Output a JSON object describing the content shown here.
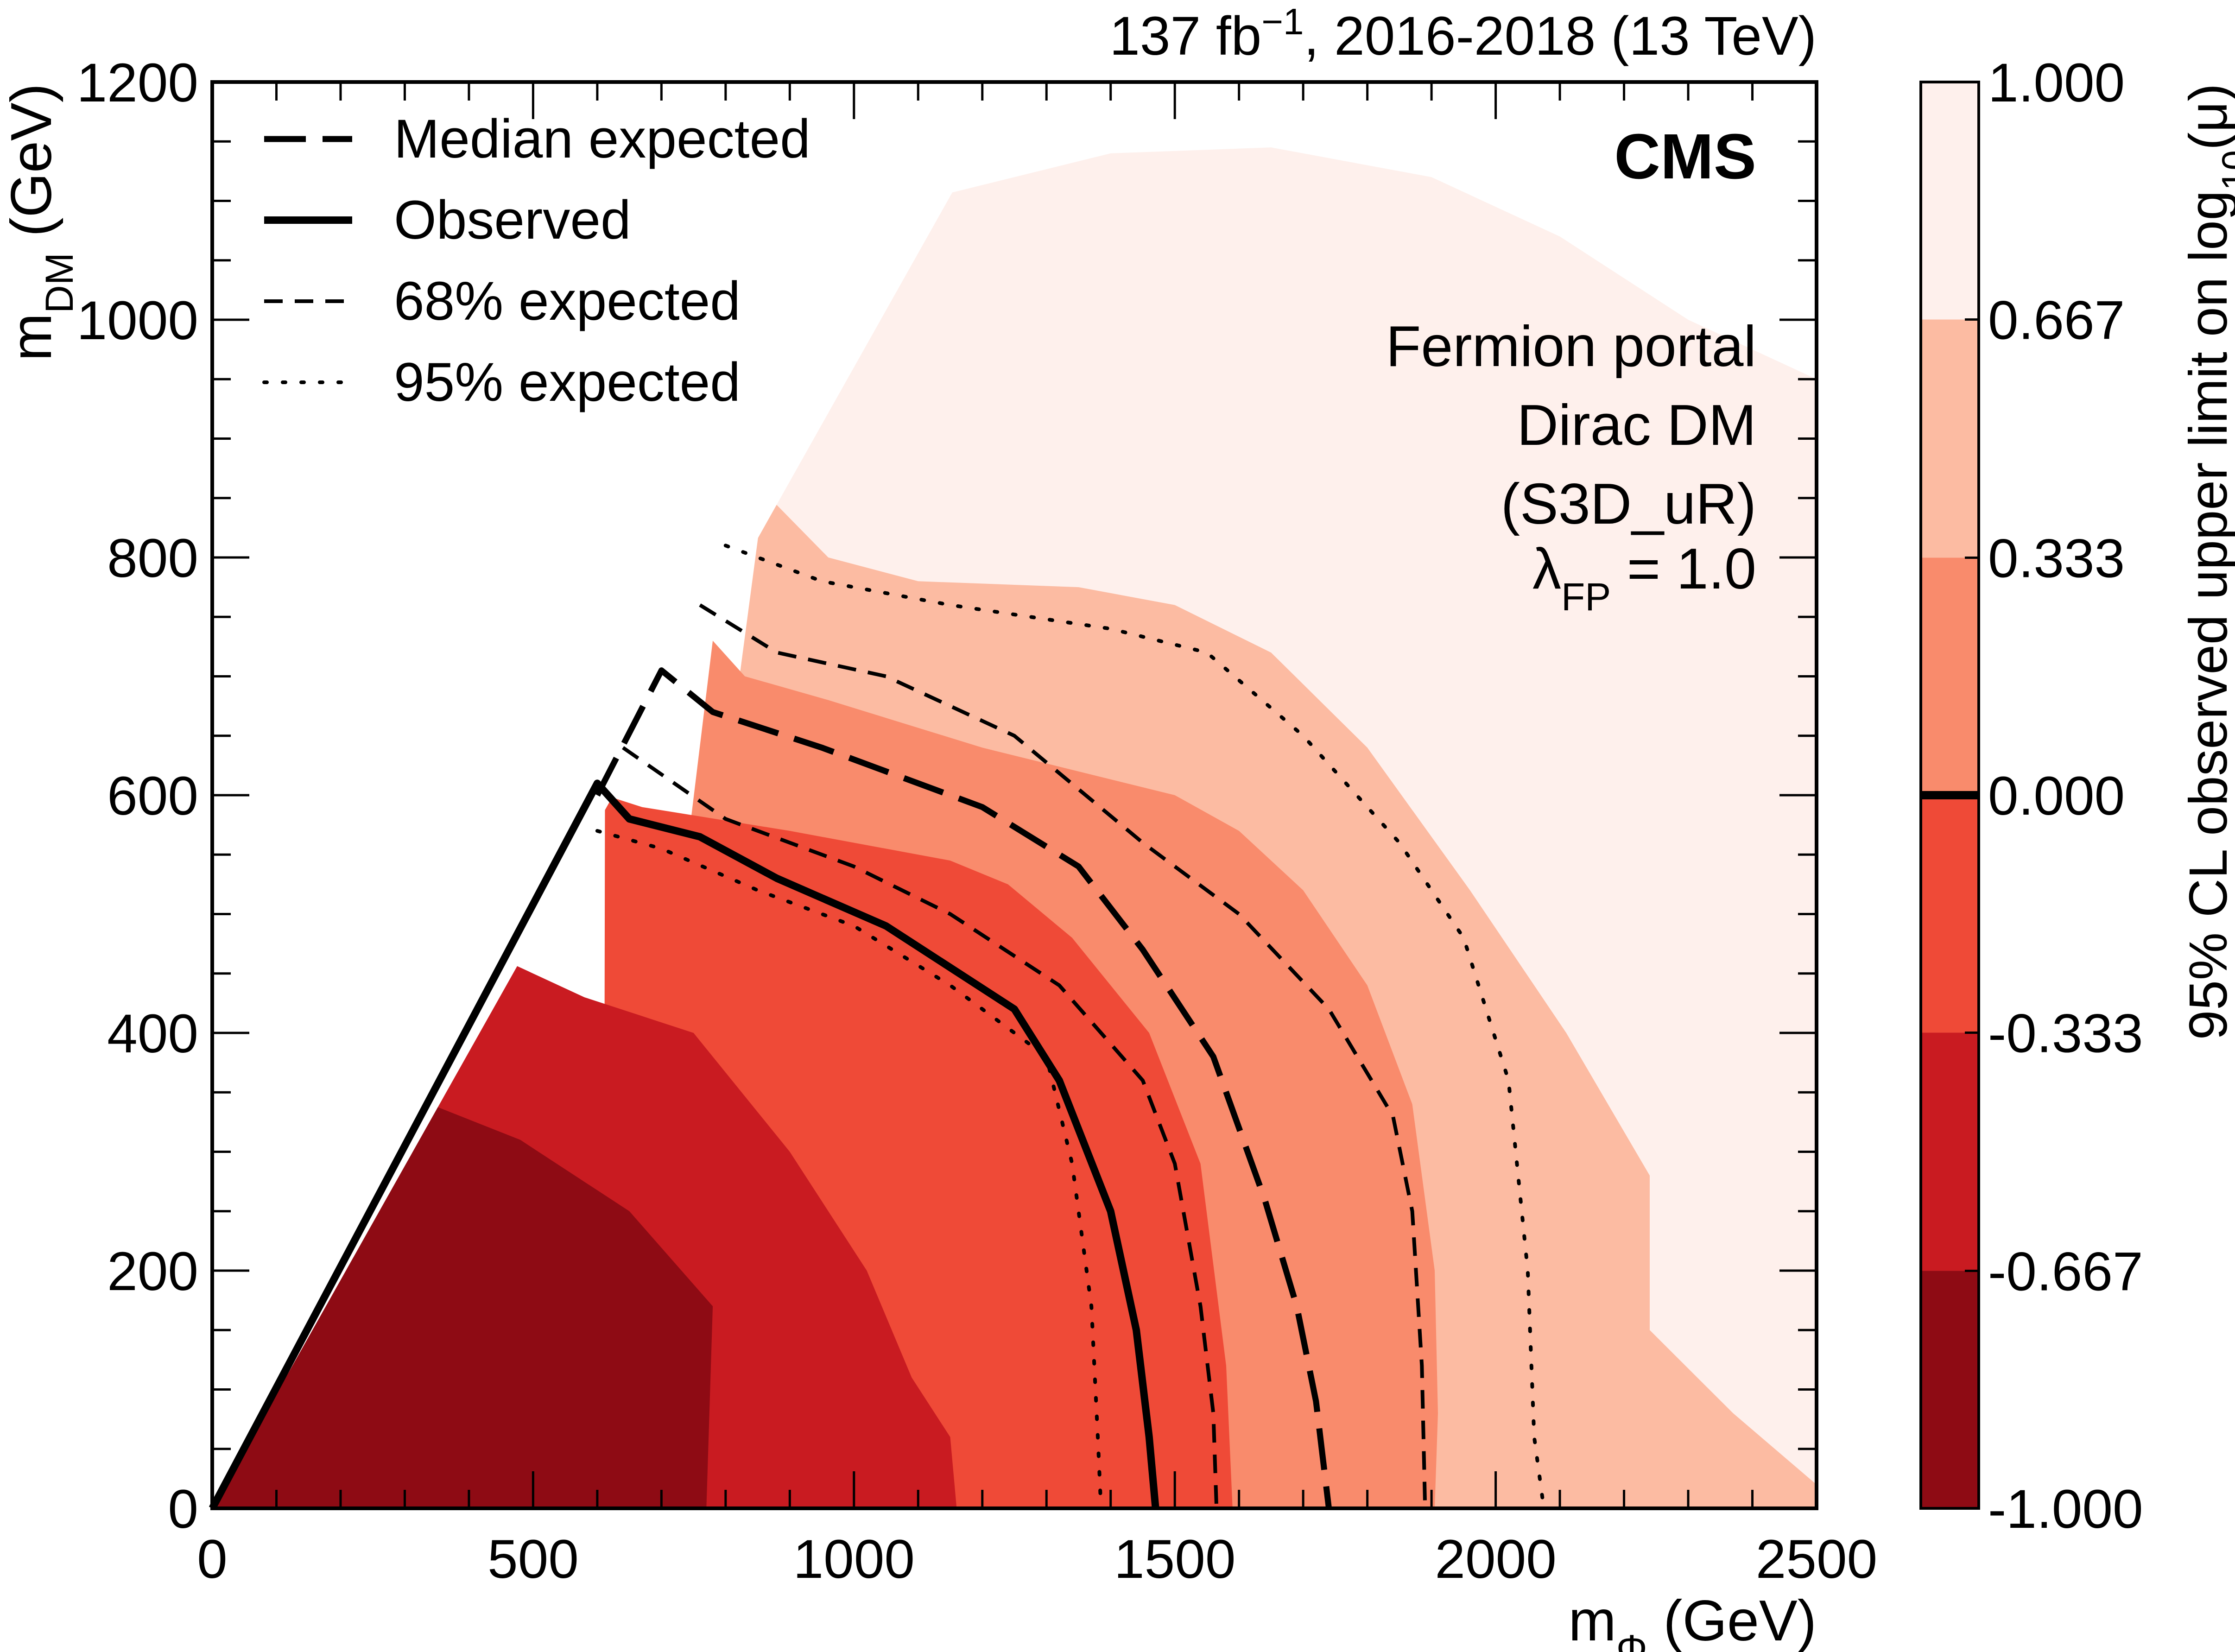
{
  "chart_data": {
    "type": "heatmap",
    "header": {
      "lumi_label": "137 fb",
      "lumi_exponent": "−1",
      "run_label": ", 2016-2018 (13 TeV)"
    },
    "experiment_label": "CMS",
    "model_lines": [
      "Fermion portal",
      "Dirac DM",
      "(S3D_uR)"
    ],
    "coupling_label": {
      "symbol": "λ",
      "subscript": "FP",
      "value": " = 1.0"
    },
    "x_axis": {
      "label_main": "m",
      "label_sub": "Φ",
      "label_unit": " (GeV)",
      "lim": [
        0,
        2500
      ],
      "ticks": [
        0,
        500,
        1000,
        1500,
        2000,
        2500
      ],
      "tick_labels": [
        "0",
        "500",
        "1000",
        "1500",
        "2000",
        "2500"
      ]
    },
    "y_axis": {
      "label_main": "m",
      "label_sub": "DM",
      "label_unit": " (GeV)",
      "lim": [
        0,
        1200
      ],
      "ticks": [
        0,
        200,
        400,
        600,
        800,
        1000,
        1200
      ],
      "tick_labels": [
        "0",
        "200",
        "400",
        "600",
        "800",
        "1000",
        "1200"
      ]
    },
    "colorbar": {
      "label_pre": "95% CL observed upper limit on log",
      "label_sub": "10",
      "label_post": "(μ)",
      "levels": [
        -1.0,
        -0.667,
        -0.333,
        0.0,
        0.333,
        0.667,
        1.0
      ],
      "level_labels": [
        "-1.000",
        "-0.667",
        "-0.333",
        "0.000",
        "0.333",
        "0.667",
        "1.000"
      ],
      "colors": [
        "#8e0b14",
        "#c91b21",
        "#ef4a37",
        "#f98b6c",
        "#fcbba2",
        "#fef0ec"
      ],
      "marked_level": 0.0
    },
    "legend": {
      "position": "top-left",
      "items": [
        {
          "label": "Median expected",
          "style": "long-dash"
        },
        {
          "label": "Observed",
          "style": "solid"
        },
        {
          "label": "68% expected",
          "style": "dash"
        },
        {
          "label": "95% expected",
          "style": "dot"
        }
      ]
    },
    "kinematic_boundary": {
      "description_points": [
        [
          0,
          0
        ],
        [
          1250,
          1200
        ]
      ]
    },
    "fill_regions": [
      {
        "level_index": 5,
        "points": [
          [
            610,
            0
          ],
          [
            770,
            490
          ],
          [
            860,
            840
          ],
          [
            1010,
            1080
          ],
          [
            1050,
            1095
          ],
          [
            1100,
            1100
          ],
          [
            1400,
            1140
          ],
          [
            1650,
            1145
          ],
          [
            1900,
            1120
          ],
          [
            2100,
            1070
          ],
          [
            2300,
            1000
          ],
          [
            2500,
            950
          ],
          [
            2500,
            0
          ]
        ]
      },
      {
        "level_index": 4,
        "points": [
          [
            610,
            0
          ],
          [
            770,
            490
          ],
          [
            860,
            855
          ],
          [
            960,
            800
          ],
          [
            1100,
            780
          ],
          [
            1350,
            775
          ],
          [
            1500,
            760
          ],
          [
            1650,
            720
          ],
          [
            1800,
            640
          ],
          [
            1960,
            520
          ],
          [
            2110,
            400
          ],
          [
            2240,
            280
          ],
          [
            2240,
            150
          ],
          [
            2370,
            80
          ],
          [
            2500,
            20
          ],
          [
            2500,
            0
          ]
        ]
      },
      {
        "level_index": 3,
        "points": [
          [
            610,
            0
          ],
          [
            720,
            465
          ],
          [
            780,
            730
          ],
          [
            830,
            700
          ],
          [
            960,
            680
          ],
          [
            1200,
            640
          ],
          [
            1500,
            600
          ],
          [
            1600,
            570
          ],
          [
            1700,
            520
          ],
          [
            1800,
            440
          ],
          [
            1870,
            340
          ],
          [
            1905,
            200
          ],
          [
            1910,
            80
          ],
          [
            1905,
            0
          ]
        ]
      },
      {
        "level_index": 2,
        "points": [
          [
            610,
            0
          ],
          [
            612,
            600
          ],
          [
            670,
            590
          ],
          [
            900,
            570
          ],
          [
            1150,
            545
          ],
          [
            1240,
            525
          ],
          [
            1340,
            480
          ],
          [
            1460,
            400
          ],
          [
            1540,
            290
          ],
          [
            1580,
            120
          ],
          [
            1590,
            0
          ]
        ]
      },
      {
        "level_index": 1,
        "points": [
          [
            0,
            0
          ],
          [
            350,
            360
          ],
          [
            460,
            460
          ],
          [
            580,
            430
          ],
          [
            750,
            400
          ],
          [
            900,
            300
          ],
          [
            1020,
            200
          ],
          [
            1090,
            110
          ],
          [
            1150,
            60
          ],
          [
            1160,
            0
          ]
        ]
      },
      {
        "level_index": 0,
        "points": [
          [
            0,
            0
          ],
          [
            340,
            340
          ],
          [
            480,
            310
          ],
          [
            650,
            250
          ],
          [
            780,
            170
          ],
          [
            770,
            0
          ]
        ]
      }
    ],
    "contours": [
      {
        "name": "Observed",
        "style": "solid",
        "points": [
          [
            0,
            0
          ],
          [
            600,
            610
          ],
          [
            650,
            580
          ],
          [
            760,
            565
          ],
          [
            880,
            530
          ],
          [
            1050,
            490
          ],
          [
            1250,
            420
          ],
          [
            1320,
            360
          ],
          [
            1400,
            250
          ],
          [
            1440,
            150
          ],
          [
            1460,
            60
          ],
          [
            1470,
            0
          ]
        ]
      },
      {
        "name": "Median expected",
        "style": "long-dash",
        "points": [
          [
            600,
            600
          ],
          [
            700,
            705
          ],
          [
            780,
            670
          ],
          [
            950,
            640
          ],
          [
            1200,
            590
          ],
          [
            1350,
            540
          ],
          [
            1450,
            470
          ],
          [
            1560,
            380
          ],
          [
            1640,
            260
          ],
          [
            1690,
            170
          ],
          [
            1720,
            90
          ],
          [
            1740,
            0
          ]
        ]
      },
      {
        "name": "68% expected",
        "style": "dash",
        "points": [
          [
            640,
            640
          ],
          [
            800,
            580
          ],
          [
            1000,
            540
          ],
          [
            1150,
            500
          ],
          [
            1320,
            440
          ],
          [
            1450,
            360
          ],
          [
            1500,
            290
          ],
          [
            1540,
            170
          ],
          [
            1560,
            80
          ],
          [
            1565,
            0
          ]
        ]
      },
      {
        "name": "68% expected",
        "style": "dash",
        "points": [
          [
            760,
            760
          ],
          [
            880,
            720
          ],
          [
            1050,
            700
          ],
          [
            1250,
            650
          ],
          [
            1450,
            560
          ],
          [
            1600,
            500
          ],
          [
            1740,
            420
          ],
          [
            1840,
            330
          ],
          [
            1870,
            250
          ],
          [
            1885,
            120
          ],
          [
            1890,
            0
          ]
        ]
      },
      {
        "name": "95% expected",
        "style": "dot",
        "points": [
          [
            600,
            570
          ],
          [
            700,
            555
          ],
          [
            850,
            520
          ],
          [
            1000,
            490
          ],
          [
            1150,
            440
          ],
          [
            1300,
            380
          ],
          [
            1340,
            290
          ],
          [
            1370,
            170
          ],
          [
            1380,
            60
          ],
          [
            1385,
            0
          ]
        ]
      },
      {
        "name": "95% expected",
        "style": "dot",
        "points": [
          [
            800,
            810
          ],
          [
            950,
            780
          ],
          [
            1150,
            760
          ],
          [
            1400,
            740
          ],
          [
            1550,
            720
          ],
          [
            1700,
            650
          ],
          [
            1850,
            560
          ],
          [
            1950,
            480
          ],
          [
            2020,
            360
          ],
          [
            2050,
            200
          ],
          [
            2060,
            60
          ],
          [
            2075,
            0
          ]
        ]
      }
    ]
  }
}
